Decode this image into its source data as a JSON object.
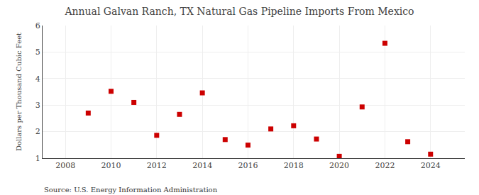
{
  "chart_data": {
    "type": "scatter",
    "title": "Annual Galvan Ranch, TX Natural Gas Pipeline Imports From Mexico",
    "ylabel": "Dollars per Thousand Cubic Feet",
    "annotations": [
      "Source: U.S. Energy Information Administration"
    ],
    "x": [
      2009,
      2010,
      2011,
      2012,
      2013,
      2014,
      2015,
      2016,
      2017,
      2018,
      2019,
      2020,
      2021,
      2022,
      2023,
      2024
    ],
    "values": [
      2.7,
      3.52,
      3.1,
      1.86,
      2.65,
      3.46,
      1.7,
      1.49,
      2.1,
      2.22,
      1.72,
      1.07,
      2.93,
      5.33,
      1.62,
      1.15
    ],
    "color": "#cc0000",
    "marker": "square",
    "xlim": [
      2007.0,
      2025.5
    ],
    "xticks": [
      2008,
      2010,
      2012,
      2014,
      2016,
      2018,
      2020,
      2022,
      2024
    ],
    "ylim": [
      1,
      6
    ],
    "yticks": [
      1,
      2,
      3,
      4,
      5,
      6
    ],
    "grid": true
  }
}
